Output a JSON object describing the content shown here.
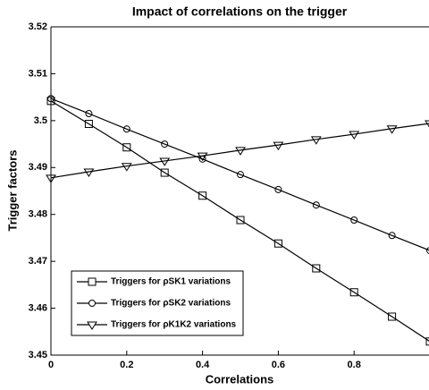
{
  "chart_data": {
    "type": "line",
    "title": "Impact of correlations on the trigger",
    "xlabel": "Correlations",
    "ylabel": "Trigger factors",
    "x": [
      0,
      0.1,
      0.2,
      0.3,
      0.4,
      0.5,
      0.6,
      0.7,
      0.8,
      0.9,
      1
    ],
    "xlim": [
      0,
      1
    ],
    "xticks": [
      0,
      0.2,
      0.4,
      0.6,
      0.8
    ],
    "ylim": [
      3.45,
      3.52
    ],
    "yticks": [
      3.45,
      3.46,
      3.47,
      3.48,
      3.49,
      3.5,
      3.51,
      3.52
    ],
    "legend": "lower left",
    "series": [
      {
        "name": "Triggers for ρSK1 variations",
        "color": "#000000",
        "marker": "square",
        "values": [
          3.5042,
          3.4993,
          3.4943,
          3.4889,
          3.484,
          3.4788,
          3.4738,
          3.4685,
          3.4634,
          3.4582,
          3.4529
        ]
      },
      {
        "name": "Triggers for ρSK2 variations",
        "color": "#000000",
        "marker": "circle",
        "values": [
          3.5047,
          3.5015,
          3.4982,
          3.495,
          3.4918,
          3.4885,
          3.4853,
          3.482,
          3.4788,
          3.4755,
          3.4723
        ]
      },
      {
        "name": "Triggers for ρK1K2 variations",
        "color": "#000000",
        "marker": "triangle",
        "values": [
          3.4878,
          3.4891,
          3.4903,
          3.4914,
          3.4925,
          3.4937,
          3.4948,
          3.496,
          3.4971,
          3.4983,
          3.4994
        ]
      }
    ]
  }
}
